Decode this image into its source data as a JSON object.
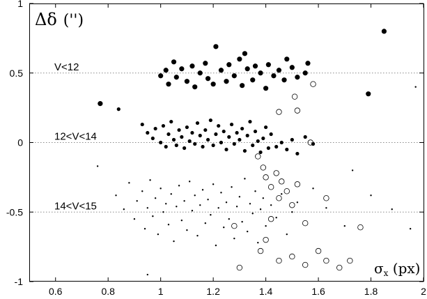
{
  "chart_data": {
    "type": "scatter",
    "title": "",
    "xlabel": "σx (px)",
    "ylabel": "Δδ (\")",
    "xlim": [
      0.5,
      2.0
    ],
    "ylim": [
      -1.0,
      1.0
    ],
    "x_ticks": [
      "0.6",
      "0.8",
      "1",
      "1.2",
      "1.4",
      "1.6",
      "1.8",
      "2"
    ],
    "y_ticks": [
      "1",
      "0.5",
      "0",
      "-0.5",
      "-1"
    ],
    "grid": false,
    "band_labels": [
      {
        "text": "V<12",
        "y": 0.5
      },
      {
        "text": "12<V<14",
        "y": 0.0
      },
      {
        "text": "14<V<15",
        "y": -0.5
      }
    ],
    "series": [
      {
        "marker": "large-filled-circle",
        "points": [
          [
            0.77,
            0.28
          ],
          [
            1.0,
            0.48
          ],
          [
            1.02,
            0.52
          ],
          [
            1.03,
            0.42
          ],
          [
            1.05,
            0.58
          ],
          [
            1.06,
            0.47
          ],
          [
            1.08,
            0.53
          ],
          [
            1.1,
            0.44
          ],
          [
            1.12,
            0.55
          ],
          [
            1.13,
            0.4
          ],
          [
            1.15,
            0.5
          ],
          [
            1.17,
            0.57
          ],
          [
            1.18,
            0.46
          ],
          [
            1.2,
            0.42
          ],
          [
            1.21,
            0.69
          ],
          [
            1.23,
            0.52
          ],
          [
            1.25,
            0.44
          ],
          [
            1.26,
            0.56
          ],
          [
            1.28,
            0.48
          ],
          [
            1.3,
            0.6
          ],
          [
            1.31,
            0.41
          ],
          [
            1.32,
            0.64
          ],
          [
            1.33,
            0.53
          ],
          [
            1.35,
            0.45
          ],
          [
            1.36,
            0.55
          ],
          [
            1.38,
            0.5
          ],
          [
            1.4,
            0.39
          ],
          [
            1.41,
            0.56
          ],
          [
            1.43,
            0.48
          ],
          [
            1.45,
            0.52
          ],
          [
            1.47,
            0.45
          ],
          [
            1.48,
            0.6
          ],
          [
            1.5,
            0.54
          ],
          [
            1.52,
            0.47
          ],
          [
            1.55,
            0.5
          ],
          [
            1.56,
            0.57
          ],
          [
            1.79,
            0.35
          ],
          [
            1.85,
            0.8
          ]
        ]
      },
      {
        "marker": "filled-circle",
        "points": [
          [
            0.84,
            0.24
          ],
          [
            0.93,
            0.13
          ],
          [
            0.95,
            0.07
          ],
          [
            0.97,
            0.03
          ],
          [
            0.98,
            0.1
          ],
          [
            1.0,
            0.0
          ],
          [
            1.01,
            0.12
          ],
          [
            1.02,
            -0.03
          ],
          [
            1.03,
            0.06
          ],
          [
            1.04,
            0.15
          ],
          [
            1.05,
            0.02
          ],
          [
            1.06,
            -0.02
          ],
          [
            1.07,
            0.09
          ],
          [
            1.08,
            0.04
          ],
          [
            1.09,
            -0.04
          ],
          [
            1.1,
            0.11
          ],
          [
            1.11,
            0.01
          ],
          [
            1.12,
            0.07
          ],
          [
            1.13,
            -0.01
          ],
          [
            1.14,
            0.14
          ],
          [
            1.15,
            0.05
          ],
          [
            1.16,
            -0.03
          ],
          [
            1.17,
            0.09
          ],
          [
            1.18,
            0.02
          ],
          [
            1.19,
            0.16
          ],
          [
            1.2,
            -0.02
          ],
          [
            1.21,
            0.06
          ],
          [
            1.22,
            0.12
          ],
          [
            1.23,
            0.0
          ],
          [
            1.24,
            0.08
          ],
          [
            1.25,
            -0.05
          ],
          [
            1.26,
            0.04
          ],
          [
            1.27,
            0.13
          ],
          [
            1.28,
            -0.01
          ],
          [
            1.29,
            0.07
          ],
          [
            1.3,
            0.02
          ],
          [
            1.31,
            0.1
          ],
          [
            1.32,
            -0.06
          ],
          [
            1.33,
            0.05
          ],
          [
            1.34,
            0.15
          ],
          [
            1.35,
            -0.02
          ],
          [
            1.36,
            0.08
          ],
          [
            1.37,
            0.01
          ],
          [
            1.38,
            -0.07
          ],
          [
            1.39,
            0.03
          ],
          [
            1.4,
            0.11
          ],
          [
            1.41,
            -0.04
          ],
          [
            1.42,
            0.06
          ],
          [
            1.44,
            -0.03
          ],
          [
            1.46,
            0.0
          ],
          [
            1.48,
            -0.05
          ],
          [
            1.5,
            0.02
          ],
          [
            1.52,
            -0.08
          ],
          [
            1.55,
            0.04
          ],
          [
            1.58,
            -0.01
          ]
        ]
      },
      {
        "marker": "small-dot",
        "points": [
          [
            0.76,
            -0.17
          ],
          [
            0.83,
            -0.38
          ],
          [
            0.86,
            -0.48
          ],
          [
            0.88,
            -0.29
          ],
          [
            0.9,
            -0.55
          ],
          [
            0.91,
            -0.42
          ],
          [
            0.93,
            -0.35
          ],
          [
            0.94,
            -0.62
          ],
          [
            0.95,
            -0.47
          ],
          [
            0.96,
            -0.27
          ],
          [
            0.97,
            -0.53
          ],
          [
            0.98,
            -0.4
          ],
          [
            0.99,
            -0.66
          ],
          [
            1.0,
            -0.33
          ],
          [
            1.01,
            -0.5
          ],
          [
            1.02,
            -0.44
          ],
          [
            1.03,
            -0.59
          ],
          [
            1.04,
            -0.37
          ],
          [
            1.05,
            -0.71
          ],
          [
            1.06,
            -0.46
          ],
          [
            1.07,
            -0.31
          ],
          [
            1.08,
            -0.56
          ],
          [
            1.09,
            -0.42
          ],
          [
            1.1,
            -0.63
          ],
          [
            1.11,
            -0.28
          ],
          [
            1.12,
            -0.49
          ],
          [
            1.13,
            -0.38
          ],
          [
            1.14,
            -0.67
          ],
          [
            1.15,
            -0.45
          ],
          [
            1.16,
            -0.34
          ],
          [
            1.17,
            -0.58
          ],
          [
            1.18,
            -0.41
          ],
          [
            1.19,
            -0.52
          ],
          [
            1.2,
            -0.3
          ],
          [
            1.21,
            -0.74
          ],
          [
            1.22,
            -0.47
          ],
          [
            1.23,
            -0.36
          ],
          [
            1.24,
            -0.61
          ],
          [
            1.25,
            -0.43
          ],
          [
            1.26,
            -0.55
          ],
          [
            1.27,
            -0.32
          ],
          [
            1.28,
            -0.69
          ],
          [
            1.29,
            -0.46
          ],
          [
            1.3,
            -0.39
          ],
          [
            1.31,
            -0.57
          ],
          [
            1.32,
            -0.26
          ],
          [
            1.33,
            -0.64
          ],
          [
            1.34,
            -0.44
          ],
          [
            1.35,
            -0.51
          ],
          [
            1.36,
            -0.35
          ],
          [
            1.37,
            -0.72
          ],
          [
            1.38,
            -0.48
          ],
          [
            1.39,
            -0.4
          ],
          [
            1.4,
            -0.6
          ],
          [
            1.42,
            -0.45
          ],
          [
            1.44,
            -0.54
          ],
          [
            1.46,
            -0.37
          ],
          [
            1.48,
            -0.66
          ],
          [
            1.5,
            -0.5
          ],
          [
            1.52,
            -0.43
          ],
          [
            1.58,
            -0.33
          ],
          [
            1.63,
            -0.47
          ],
          [
            1.7,
            -0.6
          ],
          [
            1.73,
            -0.2
          ],
          [
            1.8,
            -0.38
          ],
          [
            1.88,
            -0.48
          ],
          [
            1.95,
            -0.62
          ],
          [
            1.97,
            0.4
          ],
          [
            0.95,
            -0.95
          ]
        ]
      },
      {
        "marker": "open-circle",
        "points": [
          [
            1.37,
            -0.1
          ],
          [
            1.39,
            -0.18
          ],
          [
            1.4,
            -0.25
          ],
          [
            1.42,
            -0.32
          ],
          [
            1.44,
            -0.22
          ],
          [
            1.45,
            -0.4
          ],
          [
            1.46,
            -0.28
          ],
          [
            1.48,
            -0.35
          ],
          [
            1.5,
            -0.45
          ],
          [
            1.52,
            -0.3
          ],
          [
            1.45,
            0.22
          ],
          [
            1.52,
            0.23
          ],
          [
            1.57,
            0.0
          ],
          [
            1.63,
            -0.4
          ],
          [
            1.55,
            -0.58
          ],
          [
            1.42,
            -0.55
          ],
          [
            1.4,
            -0.7
          ],
          [
            1.38,
            -0.78
          ],
          [
            1.45,
            -0.85
          ],
          [
            1.5,
            -0.82
          ],
          [
            1.55,
            -0.88
          ],
          [
            1.6,
            -0.78
          ],
          [
            1.63,
            -0.85
          ],
          [
            1.68,
            -0.9
          ],
          [
            1.72,
            -0.85
          ],
          [
            1.76,
            -0.61
          ],
          [
            1.58,
            0.42
          ],
          [
            1.51,
            0.33
          ],
          [
            1.28,
            -0.6
          ],
          [
            1.3,
            -0.9
          ]
        ]
      }
    ]
  }
}
